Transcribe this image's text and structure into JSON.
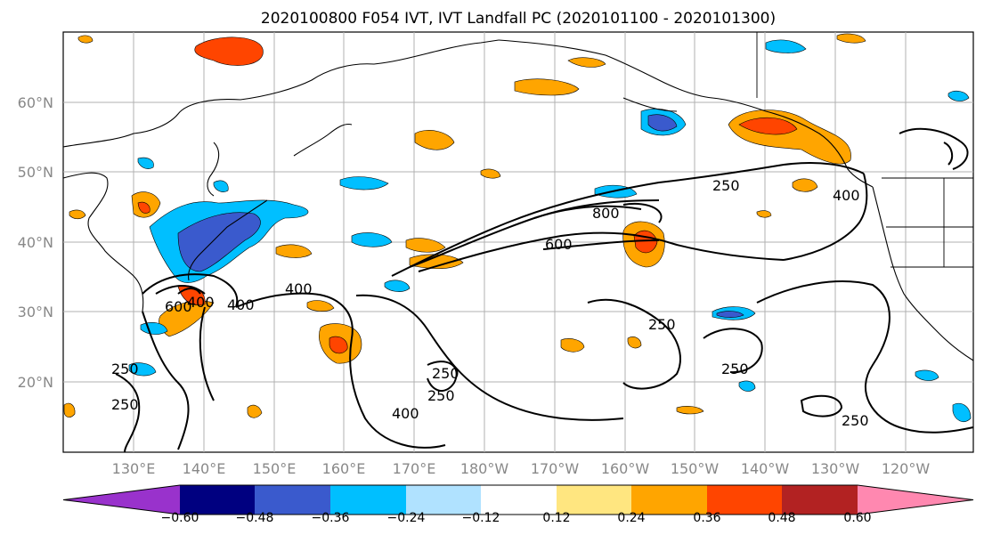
{
  "title": "2020100800 F054 IVT, IVT Landfall PC (2020101100 - 2020101300)",
  "lat_labels": [
    "60°N",
    "50°N",
    "40°N",
    "30°N",
    "20°N"
  ],
  "lon_labels": [
    "130°E",
    "140°E",
    "150°E",
    "160°E",
    "170°E",
    "180°W",
    "170°W",
    "160°W",
    "150°W",
    "140°W",
    "130°W",
    "120°W"
  ],
  "colorbar": {
    "ticks": [
      "−0.60",
      "−0.48",
      "−0.36",
      "−0.24",
      "−0.12",
      "0.12",
      "0.24",
      "0.36",
      "0.48",
      "0.60"
    ],
    "colors": [
      "#9932cc",
      "#000080",
      "#3a5acd",
      "#00bfff",
      "#b0e2ff",
      "#ffffff",
      "#ffe680",
      "#ffa500",
      "#ff4500",
      "#b22222",
      "#ff88b0"
    ]
  },
  "contour_labels": [
    "250",
    "400",
    "600",
    "800",
    "250",
    "400",
    "250",
    "250",
    "400",
    "250",
    "250",
    "400",
    "600",
    "400",
    "250",
    "250"
  ],
  "colors": {
    "land_line": "#000000",
    "grid": "#b0b0b0"
  }
}
